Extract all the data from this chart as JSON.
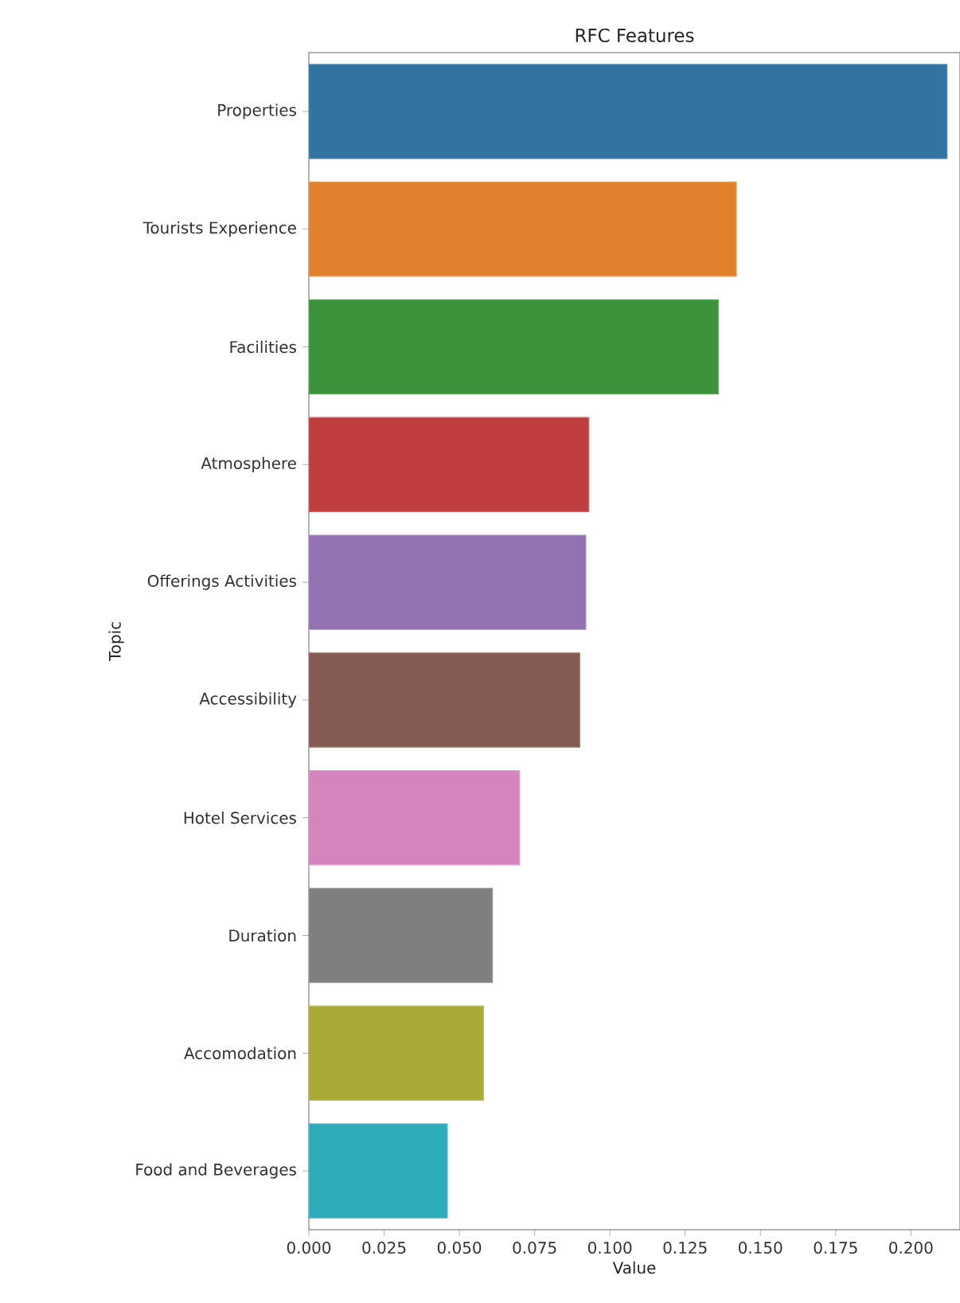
{
  "chart_data": {
    "type": "bar",
    "orientation": "horizontal",
    "title": "RFC Features",
    "xlabel": "Value",
    "ylabel": "Topic",
    "categories": [
      "Properties",
      "Tourists Experience",
      "Facilities",
      "Atmosphere",
      "Offerings Activities",
      "Accessibility",
      "Hotel Services",
      "Duration",
      "Accomodation",
      "Food and Beverages"
    ],
    "values": [
      0.212,
      0.142,
      0.136,
      0.093,
      0.092,
      0.09,
      0.07,
      0.061,
      0.058,
      0.046
    ],
    "colors": [
      "#3274a1",
      "#e1812c",
      "#3a923a",
      "#c03d3e",
      "#9372b2",
      "#845b53",
      "#d684bd",
      "#7f7f7f",
      "#a9aa35",
      "#2eabb8"
    ],
    "xlim": [
      0,
      0.2163
    ],
    "xticks": [
      {
        "value": 0,
        "label": "0.000"
      },
      {
        "value": 0.025,
        "label": "0.025"
      },
      {
        "value": 0.05,
        "label": "0.050"
      },
      {
        "value": 0.075,
        "label": "0.075"
      },
      {
        "value": 0.1,
        "label": "0.100"
      },
      {
        "value": 0.125,
        "label": "0.125"
      },
      {
        "value": 0.15,
        "label": "0.150"
      },
      {
        "value": 0.175,
        "label": "0.175"
      },
      {
        "value": 0.2,
        "label": "0.200"
      }
    ]
  }
}
